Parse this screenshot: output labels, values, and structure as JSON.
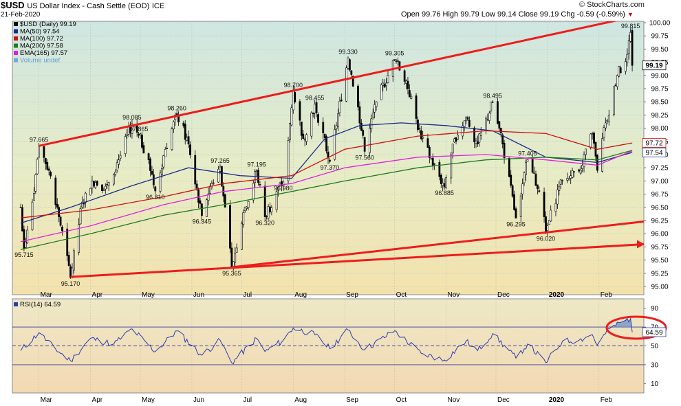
{
  "header": {
    "symbol": "$USD",
    "name": "US Dollar Index - Cash Settle (EOD)",
    "exchange": "ICE",
    "date": "21-Feb-2020",
    "watermark": "© StockCharts.com",
    "quote": "Open 99.76  High 99.79  Low 99.14  Close 99.19  Chg -0.59 (-0.59%)",
    "quote_arrow": "▼"
  },
  "chart_data": [
    {
      "type": "candlestick",
      "title": "$USD (Daily) 99.19",
      "legend": [
        {
          "label": "$USD (Daily) 99.19",
          "color": "#000000"
        },
        {
          "label": "MA(50) 97.54",
          "color": "#1a2a8c"
        },
        {
          "label": "MA(100) 97.72",
          "color": "#d01010"
        },
        {
          "label": "MA(200) 97.58",
          "color": "#1e7a1e"
        },
        {
          "label": "EMA(165) 97.57",
          "color": "#e020e0"
        },
        {
          "label": "Volume undef",
          "color": "#7aa7d8"
        }
      ],
      "x_ticks": [
        "Mar",
        "Apr",
        "May",
        "Jun",
        "Jul",
        "Aug",
        "Sep",
        "Oct",
        "Nov",
        "Dec",
        "2020",
        "Feb"
      ],
      "y_ticks": [
        "95.00",
        "95.25",
        "95.50",
        "95.75",
        "96.00",
        "96.25",
        "96.50",
        "96.75",
        "97.00",
        "97.25",
        "97.50",
        "97.75",
        "98.00",
        "98.25",
        "98.50",
        "98.75",
        "99.00",
        "99.25",
        "99.50",
        "99.75",
        "100.00"
      ],
      "ylim": [
        95.0,
        100.0
      ],
      "last_price_tags": [
        {
          "text": "99.19",
          "value": 99.19
        },
        {
          "text": "97.72",
          "value": 97.72
        },
        {
          "text": "97.54",
          "value": 97.54
        }
      ],
      "pivot_points": [
        {
          "date": "2019-02-20",
          "value": 95.715,
          "label": "95.715"
        },
        {
          "date": "2019-03-01",
          "value": 97.665,
          "label": "97.665"
        },
        {
          "date": "2019-03-20",
          "value": 95.17,
          "label": "95.170"
        },
        {
          "date": "2019-04-26",
          "value": 98.085,
          "label": "98.085"
        },
        {
          "date": "2019-04-30",
          "value": 97.865,
          "label": "97.865"
        },
        {
          "date": "2019-05-10",
          "value": 96.81,
          "label": "96.810"
        },
        {
          "date": "2019-05-23",
          "value": 98.26,
          "label": "98.260"
        },
        {
          "date": "2019-06-07",
          "value": 96.345,
          "label": "96.345"
        },
        {
          "date": "2019-06-18",
          "value": 97.265,
          "label": "97.265"
        },
        {
          "date": "2019-06-25",
          "value": 95.365,
          "label": "95.365"
        },
        {
          "date": "2019-07-10",
          "value": 97.195,
          "label": "97.195"
        },
        {
          "date": "2019-07-15",
          "value": 96.32,
          "label": "96.320"
        },
        {
          "date": "2019-07-26",
          "value": 96.98,
          "label": "96.980"
        },
        {
          "date": "2019-08-01",
          "value": 98.7,
          "label": "98.700"
        },
        {
          "date": "2019-08-14",
          "value": 98.455,
          "label": "98.455"
        },
        {
          "date": "2019-08-23",
          "value": 97.37,
          "label": "97.370"
        },
        {
          "date": "2019-09-03",
          "value": 99.33,
          "label": "99.330"
        },
        {
          "date": "2019-09-13",
          "value": 97.56,
          "label": "97.560"
        },
        {
          "date": "2019-10-01",
          "value": 99.305,
          "label": "99.305"
        },
        {
          "date": "2019-10-31",
          "value": 96.885,
          "label": "96.885"
        },
        {
          "date": "2019-11-29",
          "value": 98.495,
          "label": "98.495"
        },
        {
          "date": "2019-12-13",
          "value": 96.295,
          "label": "96.295"
        },
        {
          "date": "2019-12-20",
          "value": 97.405,
          "label": "97.405"
        },
        {
          "date": "2019-12-31",
          "value": 96.02,
          "label": "96.020"
        },
        {
          "date": "2020-02-20",
          "value": 99.815,
          "label": "99.815"
        }
      ],
      "trendlines": [
        {
          "name": "upper channel",
          "from": {
            "date": "2019-03-01",
            "value": 97.665
          },
          "to": {
            "date": "2020-02-20",
            "value": 100.1
          }
        },
        {
          "name": "lower channel",
          "from": {
            "date": "2019-06-25",
            "value": 95.365
          },
          "to": {
            "date": "2020-02-28",
            "value": 96.23
          }
        },
        {
          "name": "long-term support",
          "from": {
            "date": "2019-03-20",
            "value": 95.18
          },
          "to": {
            "date": "2020-02-28",
            "value": 95.8
          }
        }
      ],
      "ma_lines": [
        {
          "name": "MA(50)",
          "color": "#1a2a8c",
          "points": [
            [
              "2019-02-18",
              96.2
            ],
            [
              "2019-03-20",
              96.5
            ],
            [
              "2019-04-25",
              96.9
            ],
            [
              "2019-05-30",
              97.25
            ],
            [
              "2019-06-30",
              97.1
            ],
            [
              "2019-07-31",
              97.05
            ],
            [
              "2019-08-20",
              97.8
            ],
            [
              "2019-09-10",
              98.05
            ],
            [
              "2019-10-05",
              98.1
            ],
            [
              "2019-11-01",
              98.05
            ],
            [
              "2019-11-29",
              97.95
            ],
            [
              "2019-12-31",
              97.45
            ],
            [
              "2020-01-31",
              97.35
            ],
            [
              "2020-02-21",
              97.54
            ]
          ]
        },
        {
          "name": "MA(100)",
          "color": "#d01010",
          "points": [
            [
              "2019-02-18",
              96.3
            ],
            [
              "2019-04-01",
              96.45
            ],
            [
              "2019-05-15",
              96.7
            ],
            [
              "2019-06-20",
              96.95
            ],
            [
              "2019-07-31",
              97.1
            ],
            [
              "2019-09-01",
              97.6
            ],
            [
              "2019-10-15",
              97.85
            ],
            [
              "2019-11-25",
              97.95
            ],
            [
              "2019-12-31",
              97.9
            ],
            [
              "2020-01-31",
              97.6
            ],
            [
              "2020-02-21",
              97.72
            ]
          ]
        },
        {
          "name": "MA(200)",
          "color": "#1e7a1e",
          "points": [
            [
              "2019-02-18",
              95.7
            ],
            [
              "2019-04-01",
              96.0
            ],
            [
              "2019-05-15",
              96.35
            ],
            [
              "2019-06-20",
              96.55
            ],
            [
              "2019-07-31",
              96.8
            ],
            [
              "2019-09-01",
              97.0
            ],
            [
              "2019-10-15",
              97.25
            ],
            [
              "2019-11-25",
              97.4
            ],
            [
              "2019-12-31",
              97.45
            ],
            [
              "2020-01-31",
              97.4
            ],
            [
              "2020-02-21",
              97.58
            ]
          ]
        },
        {
          "name": "EMA(165)",
          "color": "#e020e0",
          "points": [
            [
              "2019-02-18",
              95.85
            ],
            [
              "2019-04-01",
              96.15
            ],
            [
              "2019-05-15",
              96.55
            ],
            [
              "2019-06-20",
              96.8
            ],
            [
              "2019-07-31",
              96.95
            ],
            [
              "2019-09-01",
              97.25
            ],
            [
              "2019-10-15",
              97.45
            ],
            [
              "2019-11-25",
              97.5
            ],
            [
              "2019-12-31",
              97.4
            ],
            [
              "2020-01-31",
              97.3
            ],
            [
              "2020-02-21",
              97.57
            ]
          ]
        }
      ],
      "price_path": [
        [
          "2019-02-18",
          96.5
        ],
        [
          "2019-02-20",
          95.715
        ],
        [
          "2019-02-25",
          96.6
        ],
        [
          "2019-03-01",
          97.665
        ],
        [
          "2019-03-07",
          97.2
        ],
        [
          "2019-03-12",
          96.5
        ],
        [
          "2019-03-20",
          95.17
        ],
        [
          "2019-03-27",
          96.6
        ],
        [
          "2019-04-02",
          97.0
        ],
        [
          "2019-04-10",
          96.9
        ],
        [
          "2019-04-18",
          97.4
        ],
        [
          "2019-04-26",
          98.085
        ],
        [
          "2019-04-30",
          97.865
        ],
        [
          "2019-05-06",
          97.4
        ],
        [
          "2019-05-10",
          96.81
        ],
        [
          "2019-05-16",
          97.6
        ],
        [
          "2019-05-23",
          98.26
        ],
        [
          "2019-05-30",
          97.7
        ],
        [
          "2019-06-07",
          96.345
        ],
        [
          "2019-06-12",
          96.9
        ],
        [
          "2019-06-18",
          97.265
        ],
        [
          "2019-06-21",
          96.5
        ],
        [
          "2019-06-25",
          95.365
        ],
        [
          "2019-07-02",
          96.4
        ],
        [
          "2019-07-10",
          97.195
        ],
        [
          "2019-07-15",
          96.32
        ],
        [
          "2019-07-22",
          96.8
        ],
        [
          "2019-07-26",
          96.98
        ],
        [
          "2019-08-01",
          98.7
        ],
        [
          "2019-08-07",
          97.8
        ],
        [
          "2019-08-14",
          98.455
        ],
        [
          "2019-08-23",
          97.37
        ],
        [
          "2019-09-03",
          99.33
        ],
        [
          "2019-09-09",
          98.4
        ],
        [
          "2019-09-13",
          97.56
        ],
        [
          "2019-09-20",
          98.5
        ],
        [
          "2019-10-01",
          99.305
        ],
        [
          "2019-10-08",
          98.9
        ],
        [
          "2019-10-17",
          97.8
        ],
        [
          "2019-10-31",
          96.885
        ],
        [
          "2019-11-06",
          97.8
        ],
        [
          "2019-11-13",
          98.2
        ],
        [
          "2019-11-20",
          97.7
        ],
        [
          "2019-11-29",
          98.495
        ],
        [
          "2019-12-05",
          97.7
        ],
        [
          "2019-12-13",
          96.295
        ],
        [
          "2019-12-20",
          97.405
        ],
        [
          "2019-12-27",
          96.8
        ],
        [
          "2019-12-31",
          96.02
        ],
        [
          "2020-01-08",
          96.9
        ],
        [
          "2020-01-15",
          97.1
        ],
        [
          "2020-01-22",
          97.3
        ],
        [
          "2020-01-28",
          97.9
        ],
        [
          "2020-01-31",
          97.2
        ],
        [
          "2020-02-05",
          98.1
        ],
        [
          "2020-02-12",
          99.0
        ],
        [
          "2020-02-18",
          99.4
        ],
        [
          "2020-02-20",
          99.815
        ],
        [
          "2020-02-21",
          99.19
        ]
      ],
      "x_domain": [
        "2019-02-13",
        "2020-02-28"
      ]
    },
    {
      "type": "line",
      "title": "RSI(14) 64.59",
      "y_ticks": [
        "10",
        "30",
        "50",
        "70",
        "90"
      ],
      "ylim": [
        0,
        100
      ],
      "reference_lines": [
        30,
        50,
        70
      ],
      "last_value_tag": "64.59",
      "rsi_path": [
        [
          "2019-02-18",
          45
        ],
        [
          "2019-03-01",
          64
        ],
        [
          "2019-03-10",
          48
        ],
        [
          "2019-03-20",
          34
        ],
        [
          "2019-04-01",
          58
        ],
        [
          "2019-04-15",
          52
        ],
        [
          "2019-04-26",
          68
        ],
        [
          "2019-05-10",
          44
        ],
        [
          "2019-05-23",
          66
        ],
        [
          "2019-06-07",
          40
        ],
        [
          "2019-06-18",
          56
        ],
        [
          "2019-06-25",
          32
        ],
        [
          "2019-07-10",
          58
        ],
        [
          "2019-07-15",
          44
        ],
        [
          "2019-07-26",
          56
        ],
        [
          "2019-08-01",
          69
        ],
        [
          "2019-08-14",
          62
        ],
        [
          "2019-08-23",
          47
        ],
        [
          "2019-09-03",
          67
        ],
        [
          "2019-09-13",
          46
        ],
        [
          "2019-10-01",
          66
        ],
        [
          "2019-10-17",
          42
        ],
        [
          "2019-10-31",
          35
        ],
        [
          "2019-11-13",
          55
        ],
        [
          "2019-11-20",
          45
        ],
        [
          "2019-11-29",
          63
        ],
        [
          "2019-12-13",
          37
        ],
        [
          "2019-12-20",
          52
        ],
        [
          "2019-12-31",
          32
        ],
        [
          "2020-01-10",
          55
        ],
        [
          "2020-01-20",
          56
        ],
        [
          "2020-01-28",
          62
        ],
        [
          "2020-01-31",
          51
        ],
        [
          "2020-02-07",
          68
        ],
        [
          "2020-02-14",
          75
        ],
        [
          "2020-02-20",
          79
        ],
        [
          "2020-02-21",
          64.59
        ]
      ]
    }
  ]
}
